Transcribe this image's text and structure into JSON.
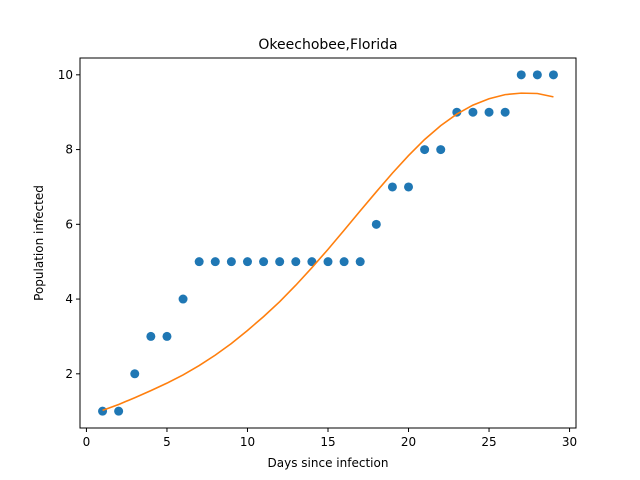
{
  "chart_data": {
    "type": "scatter",
    "title": "Okeechobee,Florida",
    "xlabel": "Days since infection",
    "ylabel": "Population infected",
    "xlim": [
      -0.4,
      30.4
    ],
    "ylim": [
      0.55,
      10.45
    ],
    "xticks": [
      0,
      5,
      10,
      15,
      20,
      25,
      30
    ],
    "yticks": [
      2,
      4,
      6,
      8,
      10
    ],
    "grid": false,
    "legend": "none",
    "series": [
      {
        "kind": "scatter",
        "color": "#1f77b4",
        "x": [
          1,
          2,
          3,
          4,
          5,
          6,
          7,
          8,
          9,
          10,
          11,
          12,
          13,
          14,
          15,
          16,
          17,
          18,
          19,
          20,
          21,
          22,
          23,
          24,
          25,
          26,
          27,
          28,
          29
        ],
        "y": [
          1,
          1,
          2,
          3,
          3,
          4,
          5,
          5,
          5,
          5,
          5,
          5,
          5,
          5,
          5,
          5,
          5,
          6,
          7,
          7,
          8,
          8,
          9,
          9,
          9,
          9,
          10,
          10,
          10
        ]
      },
      {
        "kind": "line",
        "color": "#ff7f0e",
        "x": [
          1,
          2,
          3,
          4,
          5,
          6,
          7,
          8,
          9,
          10,
          11,
          12,
          13,
          14,
          15,
          16,
          17,
          18,
          19,
          20,
          21,
          22,
          23,
          24,
          25,
          26,
          27,
          28,
          29
        ],
        "y": [
          1.02,
          1.18,
          1.36,
          1.55,
          1.75,
          1.97,
          2.22,
          2.5,
          2.81,
          3.16,
          3.53,
          3.93,
          4.37,
          4.84,
          5.33,
          5.84,
          6.36,
          6.87,
          7.37,
          7.84,
          8.27,
          8.64,
          8.95,
          9.19,
          9.36,
          9.47,
          9.51,
          9.5,
          9.41
        ]
      }
    ]
  }
}
